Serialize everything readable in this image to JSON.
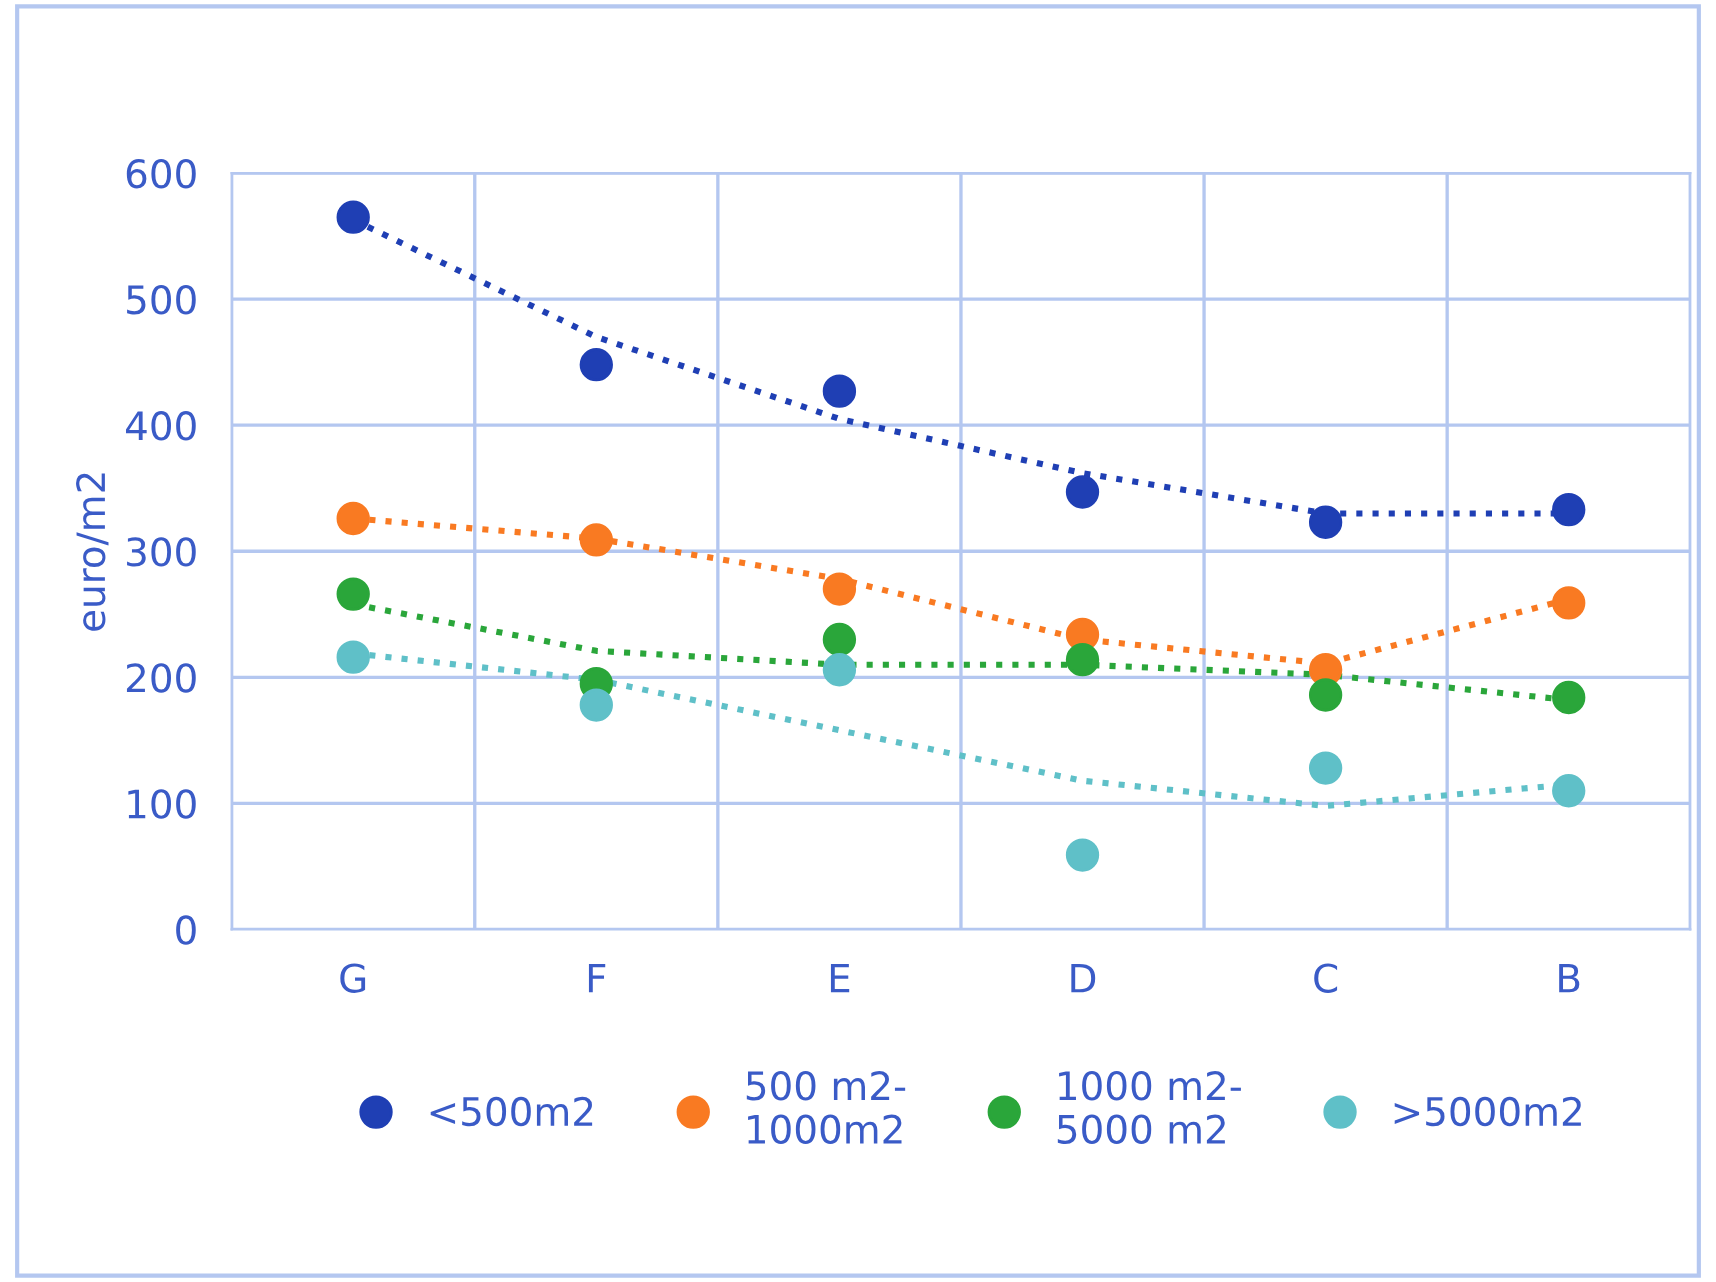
{
  "chart_data": {
    "type": "scatter",
    "ylabel": "euro/m2",
    "categories": [
      "G",
      "F",
      "E",
      "D",
      "C",
      "B"
    ],
    "series": [
      {
        "name": "<500m2",
        "color": "#1f3fb4",
        "values": [
          565,
          448,
          427,
          347,
          323,
          333
        ]
      },
      {
        "name": "500 m2-\n1000m2",
        "color": "#f97a22",
        "values": [
          326,
          309,
          270,
          234,
          206,
          259
        ]
      },
      {
        "name": "1000 m2-\n5000 m2",
        "color": "#2aa63a",
        "values": [
          266,
          195,
          230,
          214,
          186,
          184
        ]
      },
      {
        "name": ">5000m2",
        "color": "#5fc0c8",
        "values": [
          216,
          178,
          206,
          59,
          128,
          110
        ]
      },
      {
        "type": "line",
        "color": "#1f3fb4",
        "values": [
          563,
          470,
          405,
          362,
          330,
          330
        ],
        "marker": "none",
        "line_style": "dotted"
      },
      {
        "type": "line",
        "color": "#f97a22",
        "values": [
          326,
          310,
          278,
          230,
          211,
          262
        ],
        "marker": "none",
        "line_style": "dotted"
      },
      {
        "type": "line",
        "color": "#2aa63a",
        "values": [
          258,
          221,
          210,
          210,
          202,
          182
        ],
        "marker": "none",
        "line_style": "dotted"
      },
      {
        "type": "line",
        "color": "#5fc0c8",
        "values": [
          219,
          198,
          158,
          118,
          98,
          115
        ],
        "marker": "none",
        "line_style": "dotted"
      }
    ],
    "ylim": [
      0,
      600
    ],
    "yticks": [
      0,
      100,
      200,
      300,
      400,
      500,
      600
    ],
    "grid": true,
    "legend": "bottom",
    "marker": "circle"
  }
}
